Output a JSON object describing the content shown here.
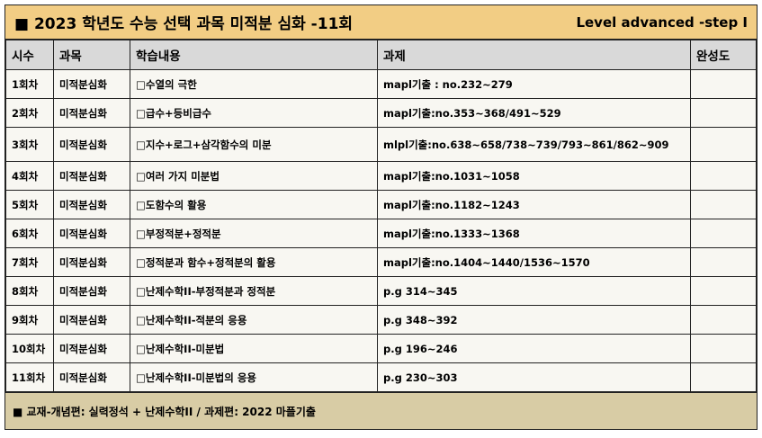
{
  "title": "■ 2023 학년도 수능 선택 과목 미적분 심화 -11회",
  "level": "Level advanced -step I",
  "headers": [
    "시수",
    "과목",
    "학습내용",
    "과제",
    "완성도"
  ],
  "rows": [
    [
      "1회차",
      "미적분심화",
      "□수열의 극한",
      "mapl기출 : no.232~279",
      ""
    ],
    [
      "2회차",
      "미적분심화",
      "□급수+등비급수",
      "mapl기출:no.353~368/491~529",
      ""
    ],
    [
      "3회차",
      "미적분심화",
      "□지수+로그+삼각함수의 미분",
      "mlpl기출:no.638~658/738~739/793~861/862~909",
      ""
    ],
    [
      "4회차",
      "미적분심화",
      "□여러 가지 미분법",
      "mapl기출:no.1031~1058",
      ""
    ],
    [
      "5회차",
      "미적분심화",
      "□도함수의 활용",
      "mapl기출:no.1182~1243",
      ""
    ],
    [
      "6회차",
      "미적분심화",
      "□부정적분+정적분",
      "mapl기출:no.1333~1368",
      ""
    ],
    [
      "7회차",
      "미적분심화",
      "□정적분과 함수+정적분의 활용",
      "mapl기출:no.1404~1440/1536~1570",
      ""
    ],
    [
      "8회차",
      "미적분심화",
      "□난제수학II-부정적분과 정적분",
      "p.g 314~345",
      ""
    ],
    [
      "9회차",
      "미적분심화",
      "□난제수학II-적분의 응용",
      "p.g 348~392",
      ""
    ],
    [
      "10회차",
      "미적분심화",
      "□난제수학II-미분법",
      "p.g 196~246",
      ""
    ],
    [
      "11회차",
      "미적분심화",
      "□난제수학II-미분법의 응용",
      "p.g 230~303",
      ""
    ]
  ],
  "footer": "■ 교재-개념편: 실력정석 + 난제수학II / 과제편: 2022 마플기출"
}
